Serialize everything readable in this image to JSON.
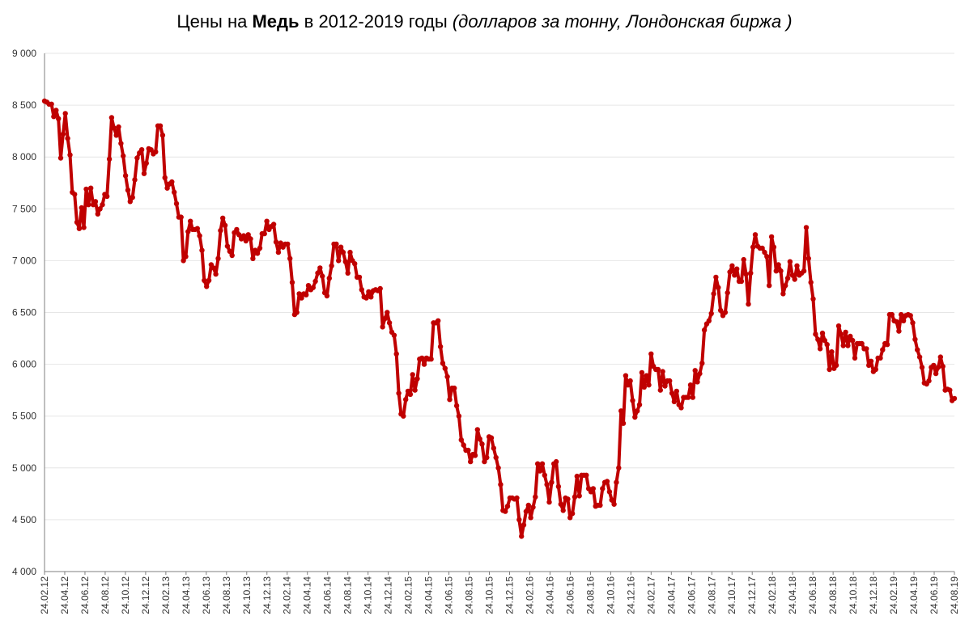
{
  "title": {
    "prefix": "Цены на ",
    "metal": "Медь",
    "middle": " в 2012-2019 годы ",
    "units": "(долларов за тонну, Лондонская биржа )"
  },
  "colors": {
    "series": "#c00000",
    "grid": "#e6e6e6",
    "axis": "#7f7f7f"
  },
  "chart_data": {
    "type": "line",
    "title": "Цены на Медь в 2012-2019 годы (долларов за тонну, Лондонская биржа )",
    "xlabel": "",
    "ylabel": "",
    "ylim": [
      4000,
      9000
    ],
    "yticks": [
      4000,
      4500,
      5000,
      5500,
      6000,
      6500,
      7000,
      7500,
      8000,
      8500,
      9000
    ],
    "ytick_labels": [
      "4 000",
      "4 500",
      "5 000",
      "5 500",
      "6 000",
      "6 500",
      "7 000",
      "7 500",
      "8 000",
      "8 500",
      "9 000"
    ],
    "grid": true,
    "legend": "none",
    "x_tick_labels": [
      "24.02.12",
      "24.04.12",
      "24.06.12",
      "24.08.12",
      "24.10.12",
      "24.12.12",
      "24.02.13",
      "24.04.13",
      "24.06.13",
      "24.08.13",
      "24.10.13",
      "24.12.13",
      "24.02.14",
      "24.04.14",
      "24.06.14",
      "24.08.14",
      "24.10.14",
      "24.12.14",
      "24.02.15",
      "24.04.15",
      "24.06.15",
      "24.08.15",
      "24.10.15",
      "24.12.15",
      "24.02.16",
      "24.04.16",
      "24.06.16",
      "24.08.16",
      "24.10.16",
      "24.12.16",
      "24.02.17",
      "24.04.17",
      "24.06.17",
      "24.08.17",
      "24.10.17",
      "24.12.17",
      "24.02.18",
      "24.04.18",
      "24.06.18",
      "24.08.18",
      "24.10.18",
      "24.12.18",
      "24.02.19",
      "24.04.19",
      "24.06.19",
      "24.08.19"
    ],
    "values": [
      8540,
      8530,
      8510,
      8510,
      8390,
      8450,
      8370,
      7990,
      8220,
      8420,
      8180,
      8020,
      7660,
      7640,
      7370,
      7310,
      7510,
      7320,
      7690,
      7540,
      7700,
      7540,
      7570,
      7450,
      7500,
      7540,
      7640,
      7620,
      7980,
      8380,
      8280,
      8210,
      8290,
      8130,
      8010,
      7820,
      7680,
      7570,
      7610,
      7780,
      7990,
      8040,
      8070,
      7840,
      7940,
      8080,
      8070,
      8030,
      8050,
      8300,
      8300,
      8210,
      7800,
      7700,
      7740,
      7760,
      7660,
      7550,
      7420,
      7420,
      7000,
      7040,
      7280,
      7380,
      7300,
      7300,
      7310,
      7240,
      7100,
      6810,
      6750,
      6810,
      6960,
      6930,
      6870,
      7020,
      7290,
      7410,
      7340,
      7140,
      7090,
      7050,
      7270,
      7300,
      7250,
      7210,
      7240,
      7190,
      7250,
      7210,
      7020,
      7100,
      7070,
      7120,
      7260,
      7260,
      7380,
      7300,
      7330,
      7350,
      7180,
      7080,
      7170,
      7130,
      7160,
      7160,
      7020,
      6790,
      6480,
      6500,
      6680,
      6640,
      6680,
      6670,
      6760,
      6720,
      6740,
      6800,
      6880,
      6930,
      6850,
      6690,
      6660,
      6830,
      6950,
      7160,
      7160,
      7000,
      7130,
      7080,
      6990,
      6880,
      7080,
      7000,
      6970,
      6840,
      6840,
      6720,
      6650,
      6640,
      6700,
      6650,
      6710,
      6720,
      6710,
      6730,
      6360,
      6440,
      6500,
      6400,
      6310,
      6280,
      6100,
      5720,
      5520,
      5500,
      5660,
      5740,
      5710,
      5900,
      5750,
      5860,
      6050,
      6060,
      6000,
      6060,
      6050,
      6050,
      6400,
      6400,
      6420,
      6170,
      6010,
      5960,
      5880,
      5660,
      5770,
      5770,
      5600,
      5500,
      5270,
      5220,
      5170,
      5170,
      5060,
      5130,
      5120,
      5370,
      5280,
      5230,
      5060,
      5100,
      5300,
      5290,
      5190,
      5100,
      5000,
      4840,
      4590,
      4580,
      4630,
      4710,
      4710,
      4700,
      4710,
      4500,
      4340,
      4450,
      4580,
      4640,
      4520,
      4620,
      4720,
      5040,
      4970,
      5040,
      4930,
      4840,
      4670,
      4860,
      5040,
      5060,
      4820,
      4650,
      4590,
      4710,
      4700,
      4520,
      4560,
      4720,
      4920,
      4730,
      4930,
      4930,
      4930,
      4800,
      4770,
      4800,
      4630,
      4640,
      4640,
      4800,
      4860,
      4870,
      4770,
      4690,
      4650,
      4860,
      5000,
      5550,
      5430,
      5890,
      5800,
      5840,
      5650,
      5490,
      5550,
      5610,
      5920,
      5780,
      5890,
      5800,
      6100,
      5980,
      5950,
      5950,
      5750,
      5930,
      5790,
      5840,
      5840,
      5720,
      5640,
      5740,
      5610,
      5580,
      5680,
      5680,
      5680,
      5800,
      5680,
      5940,
      5830,
      5910,
      6010,
      6330,
      6390,
      6420,
      6490,
      6680,
      6840,
      6740,
      6520,
      6470,
      6500,
      6690,
      6890,
      6950,
      6860,
      6920,
      6800,
      6800,
      7010,
      6870,
      6580,
      6880,
      7130,
      7250,
      7140,
      7120,
      7120,
      7080,
      7040,
      6760,
      7230,
      7130,
      6900,
      6960,
      6900,
      6680,
      6760,
      6830,
      6990,
      6860,
      6820,
      6950,
      6860,
      6880,
      6900,
      7320,
      7020,
      6790,
      6630,
      6290,
      6240,
      6150,
      6300,
      6230,
      6190,
      5950,
      6120,
      5960,
      5990,
      6370,
      6290,
      6180,
      6310,
      6180,
      6270,
      6230,
      6060,
      6200,
      6200,
      6200,
      6150,
      6150,
      5990,
      6030,
      5930,
      5950,
      6060,
      6060,
      6140,
      6200,
      6190,
      6480,
      6480,
      6420,
      6410,
      6320,
      6480,
      6420,
      6470,
      6480,
      6470,
      6400,
      6240,
      6140,
      6070,
      5970,
      5820,
      5810,
      5840,
      5970,
      5990,
      5910,
      5970,
      6070,
      5980,
      5750,
      5760,
      5750,
      5650,
      5670
    ]
  }
}
